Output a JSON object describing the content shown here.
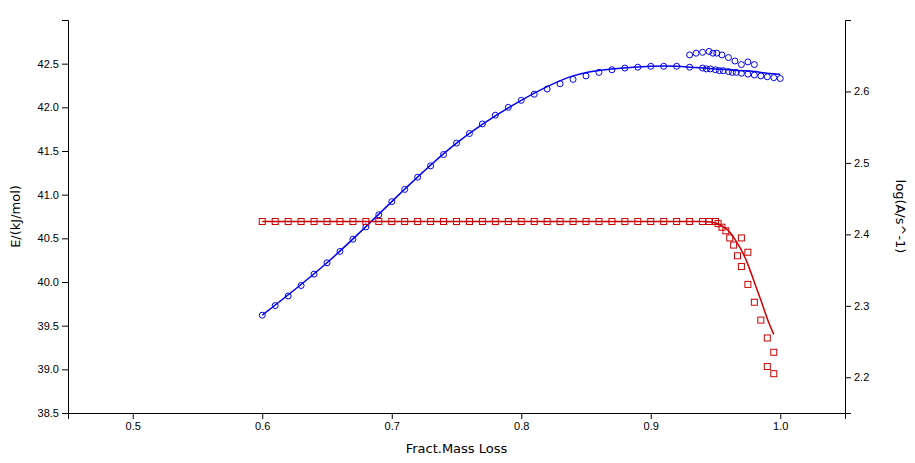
{
  "chart_data": {
    "type": "scatter",
    "xlabel": "Fract.Mass Loss",
    "ylabel": "E/(kJ/mol)",
    "y2label": "log(A/s^-1)",
    "xlim": [
      0.45,
      1.05
    ],
    "ylim": [
      38.5,
      43.0
    ],
    "y2lim": [
      2.15,
      2.7
    ],
    "xticks": [
      0.5,
      0.6,
      0.7,
      0.8,
      0.9,
      {
        "value": 1.0,
        "label": "1.0"
      }
    ],
    "yticks": [
      38.5,
      {
        "value": 39.0,
        "label": "39.0"
      },
      39.5,
      {
        "value": 40.0,
        "label": "40.0"
      },
      40.5,
      {
        "value": 41.0,
        "label": "41.0"
      },
      41.5,
      {
        "value": 42.0,
        "label": "42.0"
      },
      42.5
    ],
    "y2ticks": [
      2.2,
      2.3,
      2.4,
      2.5,
      2.6
    ],
    "grid": false,
    "series": [
      {
        "type": "scatter",
        "marker": "circle",
        "color": "#0000ee",
        "x": [
          0.6,
          0.61,
          0.62,
          0.63,
          0.64,
          0.65,
          0.66,
          0.67,
          0.68,
          0.69,
          0.7,
          0.71,
          0.72,
          0.73,
          0.74,
          0.75,
          0.76,
          0.77,
          0.78,
          0.79,
          0.8,
          0.81,
          0.82,
          0.83,
          0.84,
          0.85,
          0.86,
          0.87,
          0.88,
          0.89,
          0.9,
          0.91,
          0.92,
          0.93
        ],
        "values": [
          39.62,
          39.73,
          39.84,
          39.96,
          40.09,
          40.22,
          40.35,
          40.49,
          40.63,
          40.77,
          40.92,
          41.06,
          41.2,
          41.33,
          41.46,
          41.59,
          41.7,
          41.81,
          41.91,
          42.0,
          42.08,
          42.15,
          42.21,
          42.27,
          42.32,
          42.36,
          42.4,
          42.43,
          42.45,
          42.46,
          42.47,
          42.47,
          42.47,
          42.46
        ]
      },
      {
        "type": "scatter",
        "marker": "circle",
        "color": "#0000ee",
        "x": [
          0.94,
          0.943,
          0.946,
          0.95,
          0.953,
          0.956,
          0.96,
          0.963,
          0.966,
          0.97,
          0.975,
          0.98,
          0.985,
          0.99,
          0.995,
          1.0
        ],
        "values": [
          42.45,
          42.44,
          42.44,
          42.43,
          42.42,
          42.42,
          42.41,
          42.4,
          42.4,
          42.39,
          42.38,
          42.37,
          42.36,
          42.35,
          42.34,
          42.33
        ]
      },
      {
        "type": "scatter",
        "marker": "circle",
        "color": "#0000ee",
        "x": [
          0.93,
          0.935,
          0.94,
          0.945,
          0.948,
          0.951,
          0.955,
          0.96,
          0.965,
          0.97,
          0.975,
          0.98
        ],
        "values": [
          42.6,
          42.62,
          42.63,
          42.64,
          42.62,
          42.62,
          42.6,
          42.57,
          42.53,
          42.49,
          42.52,
          42.49
        ]
      },
      {
        "type": "line",
        "line_style": "solid",
        "color": "#0000ee",
        "x": [
          0.6,
          0.65,
          0.7,
          0.75,
          0.8,
          0.84,
          0.87,
          0.9,
          0.92,
          0.93,
          0.94,
          0.95,
          0.96,
          0.97,
          0.98,
          0.99,
          1.0
        ],
        "values": [
          39.62,
          40.22,
          40.92,
          41.59,
          42.08,
          42.36,
          42.44,
          42.47,
          42.47,
          42.46,
          42.45,
          42.44,
          42.43,
          42.42,
          42.41,
          42.39,
          42.38
        ]
      },
      {
        "type": "scatter",
        "marker": "square",
        "color": "#cc0000",
        "axis": "y2",
        "x": [
          0.6,
          0.61,
          0.62,
          0.63,
          0.64,
          0.65,
          0.66,
          0.67,
          0.68,
          0.69,
          0.7,
          0.71,
          0.72,
          0.73,
          0.74,
          0.75,
          0.76,
          0.77,
          0.78,
          0.79,
          0.8,
          0.81,
          0.82,
          0.83,
          0.84,
          0.85,
          0.86,
          0.87,
          0.88,
          0.89,
          0.9,
          0.91,
          0.92,
          0.93,
          0.94,
          0.945,
          0.95
        ],
        "values": [
          2.418,
          2.418,
          2.418,
          2.418,
          2.418,
          2.418,
          2.418,
          2.418,
          2.418,
          2.418,
          2.418,
          2.418,
          2.418,
          2.418,
          2.418,
          2.418,
          2.418,
          2.418,
          2.418,
          2.418,
          2.418,
          2.418,
          2.418,
          2.418,
          2.418,
          2.418,
          2.418,
          2.418,
          2.418,
          2.418,
          2.418,
          2.418,
          2.418,
          2.418,
          2.418,
          2.418,
          2.418
        ]
      },
      {
        "type": "scatter",
        "marker": "square",
        "color": "#cc0000",
        "axis": "y2",
        "x": [
          0.952,
          0.955,
          0.958,
          0.961,
          0.964,
          0.967,
          0.97,
          0.975,
          0.98,
          0.985,
          0.99,
          0.995
        ],
        "values": [
          2.415,
          2.41,
          2.405,
          2.395,
          2.385,
          2.37,
          2.355,
          2.33,
          2.305,
          2.28,
          2.255,
          2.235
        ]
      },
      {
        "type": "scatter",
        "marker": "square",
        "color": "#cc0000",
        "axis": "y2",
        "x": [
          0.97,
          0.975,
          0.99,
          0.995
        ],
        "values": [
          2.395,
          2.375,
          2.215,
          2.205
        ]
      },
      {
        "type": "line",
        "line_style": "solid",
        "color": "#cc0000",
        "axis": "y2",
        "x": [
          0.6,
          0.7,
          0.8,
          0.9,
          0.94,
          0.95,
          0.955,
          0.96,
          0.965,
          0.97,
          0.975,
          0.98,
          0.985,
          0.99,
          0.995
        ],
        "values": [
          2.418,
          2.418,
          2.418,
          2.418,
          2.418,
          2.416,
          2.412,
          2.405,
          2.393,
          2.378,
          2.358,
          2.333,
          2.308,
          2.282,
          2.26
        ]
      }
    ]
  }
}
